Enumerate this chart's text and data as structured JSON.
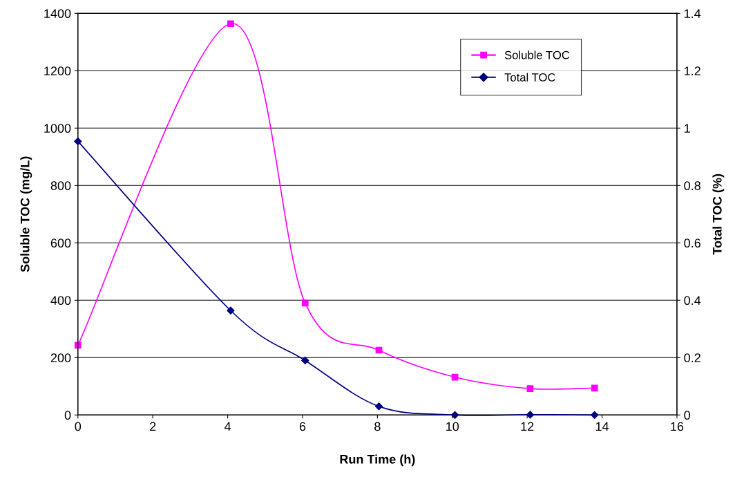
{
  "chart_data": {
    "type": "line",
    "xlabel": "Run Time (h)",
    "ylabel": "Soluble TOC (mg/L)",
    "y2label": "Total TOC (%)",
    "x": [
      0,
      4.08,
      6.07,
      8.04,
      10.07,
      12.08,
      13.8
    ],
    "series": [
      {
        "name": "Soluble TOC",
        "color": "#ff00ff",
        "marker": "square",
        "values": [
          243,
          1364,
          390,
          226,
          132,
          92,
          94
        ]
      },
      {
        "name": "Total TOC",
        "color": "#000080",
        "marker": "diamond",
        "axis": "y2",
        "values": [
          0.954,
          0.364,
          0.19,
          0.03,
          0.0,
          0.001,
          0.0
        ]
      }
    ],
    "xlim": [
      0,
      16
    ],
    "xticks": [
      0,
      2,
      4,
      6,
      8,
      10,
      12,
      14,
      16
    ],
    "ylim": [
      0,
      1400
    ],
    "yticks": [
      0,
      200,
      400,
      600,
      800,
      1000,
      1200,
      1400
    ],
    "y2lim": [
      0,
      1.4
    ],
    "y2ticks": [
      0,
      0.2,
      0.4,
      0.6,
      0.8,
      1,
      1.2,
      1.4
    ],
    "grid": "y",
    "legend": "top right",
    "line_style": "solid"
  }
}
